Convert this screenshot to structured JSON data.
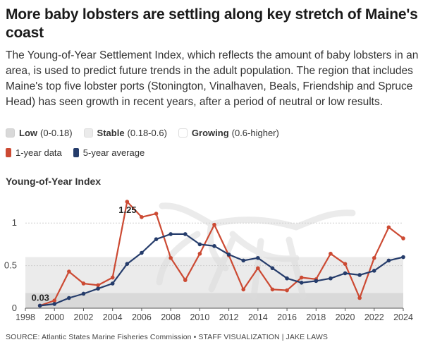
{
  "title": "More baby lobsters are settling along key stretch of Maine's coast",
  "subtitle": "The Young-of-Year Settlement Index, which reflects the amount of baby lobsters in an area, is used to predict future trends in the adult population. The region that includes Maine's top five lobster ports (Stonington, Vinalhaven, Beals, Friendship and Spruce Head) has seen growth in recent years, after a period of neutral or low results.",
  "legend": {
    "bands": [
      {
        "name": "Low",
        "range": "(0-0.18)",
        "color": "#d9d9d9",
        "border": "#cfcfcf"
      },
      {
        "name": "Stable",
        "range": "(0.18-0.6)",
        "color": "#ebebeb",
        "border": "#dddddd"
      },
      {
        "name": "Growing",
        "range": "(0.6-higher)",
        "color": "#ffffff",
        "border": "#dddddd"
      }
    ],
    "series": [
      {
        "name": "1-year data",
        "color": "#cc4a33"
      },
      {
        "name": "5-year average",
        "color": "#253c6b"
      }
    ]
  },
  "y_axis_title": "Young-of-Year Index",
  "source": "SOURCE: Atlantic States Marine Fisheries Commission • STAFF VISUALIZATION | JAKE LAWS",
  "chart_data": {
    "type": "line",
    "title": "Young-of-Year Index",
    "xlabel": "",
    "ylabel": "Young-of-Year Index",
    "xlim": [
      1998,
      2024
    ],
    "ylim": [
      0,
      1.3
    ],
    "x_ticks": [
      1998,
      2000,
      2002,
      2004,
      2006,
      2008,
      2010,
      2012,
      2014,
      2016,
      2018,
      2020,
      2022,
      2024
    ],
    "y_ticks": [
      0,
      0.5,
      1
    ],
    "y_tick_labels": [
      "0",
      "0.5",
      "1"
    ],
    "bands": [
      {
        "name": "Low",
        "from": 0,
        "to": 0.18,
        "color": "#d9d9d9"
      },
      {
        "name": "Stable",
        "from": 0.18,
        "to": 0.6,
        "color": "#ebebeb"
      },
      {
        "name": "Growing",
        "from": 0.6,
        "to": 1.3,
        "color": "#ffffff"
      }
    ],
    "x": [
      1999,
      2000,
      2001,
      2002,
      2003,
      2004,
      2005,
      2006,
      2007,
      2008,
      2009,
      2010,
      2011,
      2012,
      2013,
      2014,
      2015,
      2016,
      2017,
      2018,
      2019,
      2020,
      2021,
      2022,
      2023,
      2024
    ],
    "series": [
      {
        "name": "1-year data",
        "color": "#cc4a33",
        "values": [
          0.03,
          0.09,
          0.43,
          0.29,
          0.27,
          0.36,
          1.25,
          1.07,
          1.11,
          0.59,
          0.33,
          0.64,
          0.98,
          0.62,
          0.22,
          0.47,
          0.22,
          0.21,
          0.36,
          0.34,
          0.64,
          0.52,
          0.12,
          0.59,
          0.95,
          0.82
        ]
      },
      {
        "name": "5-year average",
        "color": "#253c6b",
        "values": [
          0.03,
          0.05,
          0.12,
          0.17,
          0.23,
          0.29,
          0.52,
          0.65,
          0.81,
          0.87,
          0.87,
          0.75,
          0.73,
          0.63,
          0.56,
          0.59,
          0.47,
          0.35,
          0.3,
          0.32,
          0.35,
          0.41,
          0.39,
          0.44,
          0.56,
          0.6
        ]
      }
    ],
    "annotations": [
      {
        "x": 1999,
        "y": 0.03,
        "text": "0.03"
      },
      {
        "x": 2005,
        "y": 1.25,
        "text": "1.25"
      }
    ]
  }
}
